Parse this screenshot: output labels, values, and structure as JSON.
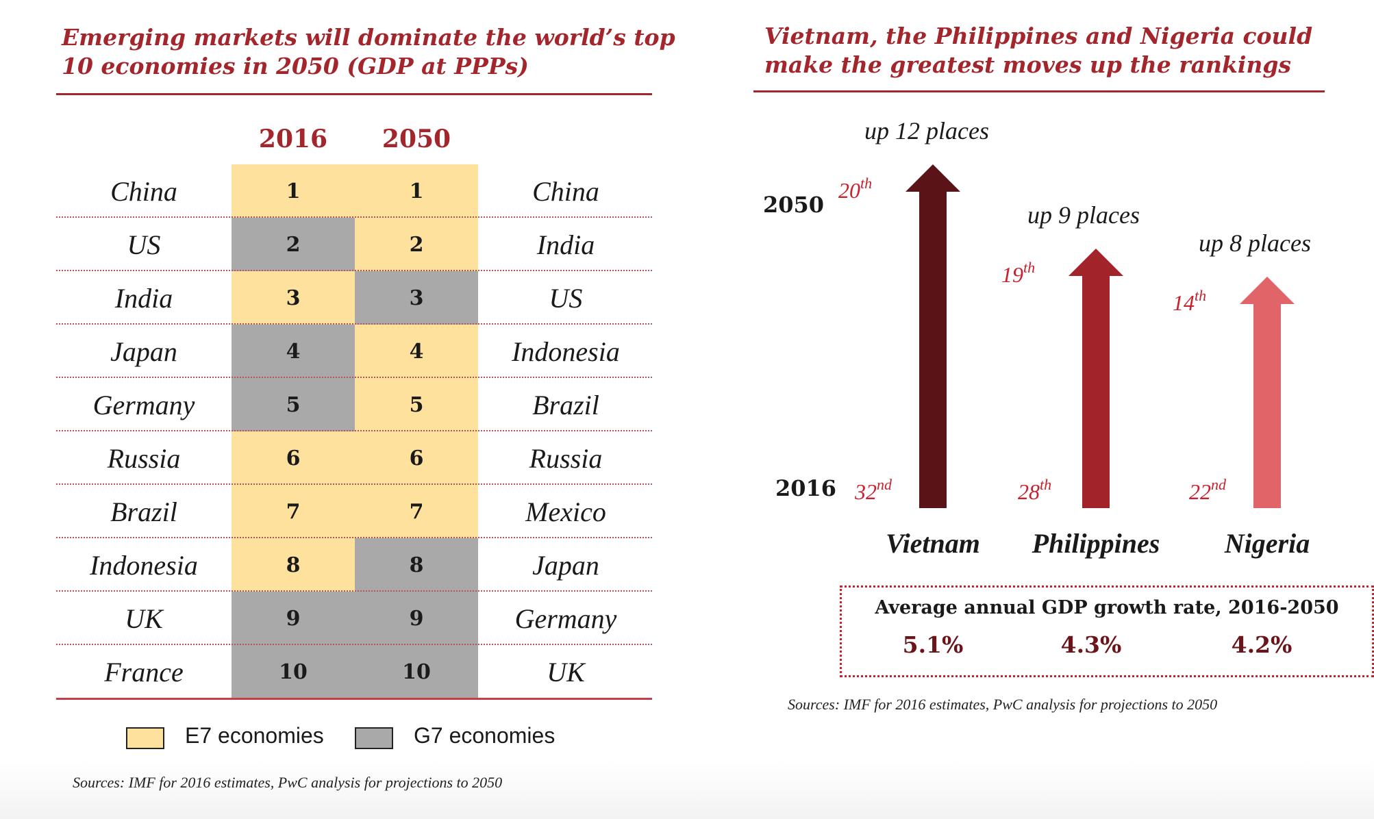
{
  "left_panel": {
    "title_line1": "Emerging markets will dominate the world’s top",
    "title_line2": "10 economies in 2050 (GDP at PPPs)",
    "year_2016": "2016",
    "year_2050": "2050",
    "rows": [
      {
        "country_2016": "China",
        "rank": "1",
        "group_2016": "E7",
        "group_2050": "E7",
        "country_2050": "China"
      },
      {
        "country_2016": "US",
        "rank": "2",
        "group_2016": "G7",
        "group_2050": "E7",
        "country_2050": "India"
      },
      {
        "country_2016": "India",
        "rank": "3",
        "group_2016": "E7",
        "group_2050": "G7",
        "country_2050": "US"
      },
      {
        "country_2016": "Japan",
        "rank": "4",
        "group_2016": "G7",
        "group_2050": "E7",
        "country_2050": "Indonesia"
      },
      {
        "country_2016": "Germany",
        "rank": "5",
        "group_2016": "G7",
        "group_2050": "E7",
        "country_2050": "Brazil"
      },
      {
        "country_2016": "Russia",
        "rank": "6",
        "group_2016": "E7",
        "group_2050": "E7",
        "country_2050": "Russia"
      },
      {
        "country_2016": "Brazil",
        "rank": "7",
        "group_2016": "E7",
        "group_2050": "E7",
        "country_2050": "Mexico"
      },
      {
        "country_2016": "Indonesia",
        "rank": "8",
        "group_2016": "E7",
        "group_2050": "G7",
        "country_2050": "Japan"
      },
      {
        "country_2016": "UK",
        "rank": "9",
        "group_2016": "G7",
        "group_2050": "G7",
        "country_2050": "Germany"
      },
      {
        "country_2016": "France",
        "rank": "10",
        "group_2016": "G7",
        "group_2050": "G7",
        "country_2050": "UK"
      }
    ],
    "legend": {
      "e7_label": "E7 economies",
      "g7_label": "G7 economies"
    },
    "source": "Sources: IMF for 2016 estimates, PwC analysis for projections to 2050"
  },
  "right_panel": {
    "title_line1": "Vietnam, the Philippines and Nigeria could",
    "title_line2": "make the greatest moves up the rankings",
    "axis_2050": "2050",
    "axis_2016": "2016",
    "growth_title": "Average annual GDP growth rate, 2016-2050",
    "source": "Sources: IMF for 2016 estimates, PwC analysis for projections to 2050"
  },
  "colors": {
    "accent": "#a3262c",
    "e7": "#fde19d",
    "g7": "#a9a9a9",
    "vietnam_arrow": "#5a1317",
    "philippines_arrow": "#a3232a",
    "nigeria_arrow": "#e06468"
  },
  "chart_data": {
    "type": "table",
    "title": "Emerging markets will dominate the world’s top 10 economies in 2050 (GDP at PPPs)",
    "columns": [
      "2016",
      "2050"
    ],
    "ranking_2016": [
      "China",
      "US",
      "India",
      "Japan",
      "Germany",
      "Russia",
      "Brazil",
      "Indonesia",
      "UK",
      "France"
    ],
    "ranking_2050": [
      "China",
      "India",
      "US",
      "Indonesia",
      "Brazil",
      "Russia",
      "Mexico",
      "Japan",
      "Germany",
      "UK"
    ],
    "movers": {
      "type": "bar",
      "title": "Vietnam, the Philippines and Nigeria could make the greatest moves up the rankings",
      "categories": [
        "Vietnam",
        "Philippines",
        "Nigeria"
      ],
      "rank_2016": [
        32,
        28,
        22
      ],
      "rank_2050": [
        20,
        19,
        14
      ],
      "rank_2016_labels": [
        {
          "num": "32",
          "suf": "nd"
        },
        {
          "num": "28",
          "suf": "th"
        },
        {
          "num": "22",
          "suf": "nd"
        }
      ],
      "rank_2050_labels": [
        {
          "num": "20",
          "suf": "th"
        },
        {
          "num": "19",
          "suf": "th"
        },
        {
          "num": "14",
          "suf": "th"
        }
      ],
      "places_up_labels": [
        "up 12 places",
        "up 9 places",
        "up 8 places"
      ],
      "growth_rates": [
        "5.1%",
        "4.3%",
        "4.2%"
      ]
    }
  }
}
